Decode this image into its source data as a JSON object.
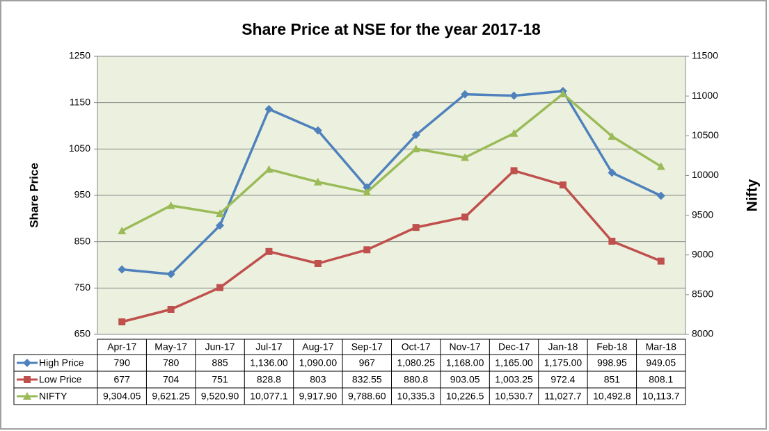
{
  "chart_data": {
    "type": "line",
    "title": "Share Price at NSE for the year 2017-18",
    "ylabel": "Share Price",
    "y2label": "Nifty",
    "categories": [
      "Apr-17",
      "May-17",
      "Jun-17",
      "Jul-17",
      "Aug-17",
      "Sep-17",
      "Oct-17",
      "Nov-17",
      "Dec-17",
      "Jan-18",
      "Feb-18",
      "Mar-18"
    ],
    "series": [
      {
        "name": "High Price",
        "color": "#4f81bd",
        "marker": "diamond",
        "values": [
          790,
          780,
          885,
          1136,
          1090,
          967,
          1080.25,
          1168,
          1165,
          1175,
          998.95,
          949.05
        ],
        "value_labels": [
          "790",
          "780",
          "885",
          "1,136.00",
          "1,090.00",
          "967",
          "1,080.25",
          "1,168.00",
          "1,165.00",
          "1,175.00",
          "998.95",
          "949.05"
        ]
      },
      {
        "name": "Low Price",
        "color": "#c0504d",
        "marker": "square",
        "values": [
          677,
          704,
          751,
          828.8,
          803,
          832.55,
          880.8,
          903.05,
          1003.25,
          972.4,
          851,
          808.1
        ],
        "value_labels": [
          "677",
          "704",
          "751",
          "828.8",
          "803",
          "832.55",
          "880.8",
          "903.05",
          "1,003.25",
          "972.4",
          "851",
          "808.1"
        ]
      },
      {
        "name": "NIFTY",
        "color": "#9bbb59",
        "marker": "triangle",
        "axis": "y2",
        "values": [
          9304.05,
          9621.25,
          9520.9,
          10077.1,
          9917.9,
          9788.6,
          10335.3,
          10226.5,
          10530.7,
          11027.7,
          10492.8,
          10113.7
        ],
        "value_labels": [
          "9,304.05",
          "9,621.25",
          "9,520.90",
          "10,077.1",
          "9,917.90",
          "9,788.60",
          "10,335.3",
          "10,226.5",
          "10,530.7",
          "11,027.7",
          "10,492.8",
          "10,113.7"
        ]
      }
    ],
    "ylim": [
      650,
      1250
    ],
    "yticks": [
      650,
      750,
      850,
      950,
      1050,
      1150,
      1250
    ],
    "y2lim": [
      8000,
      11500
    ],
    "y2ticks": [
      8000,
      8500,
      9000,
      9500,
      10000,
      10500,
      11000,
      11500
    ],
    "grid": true
  }
}
